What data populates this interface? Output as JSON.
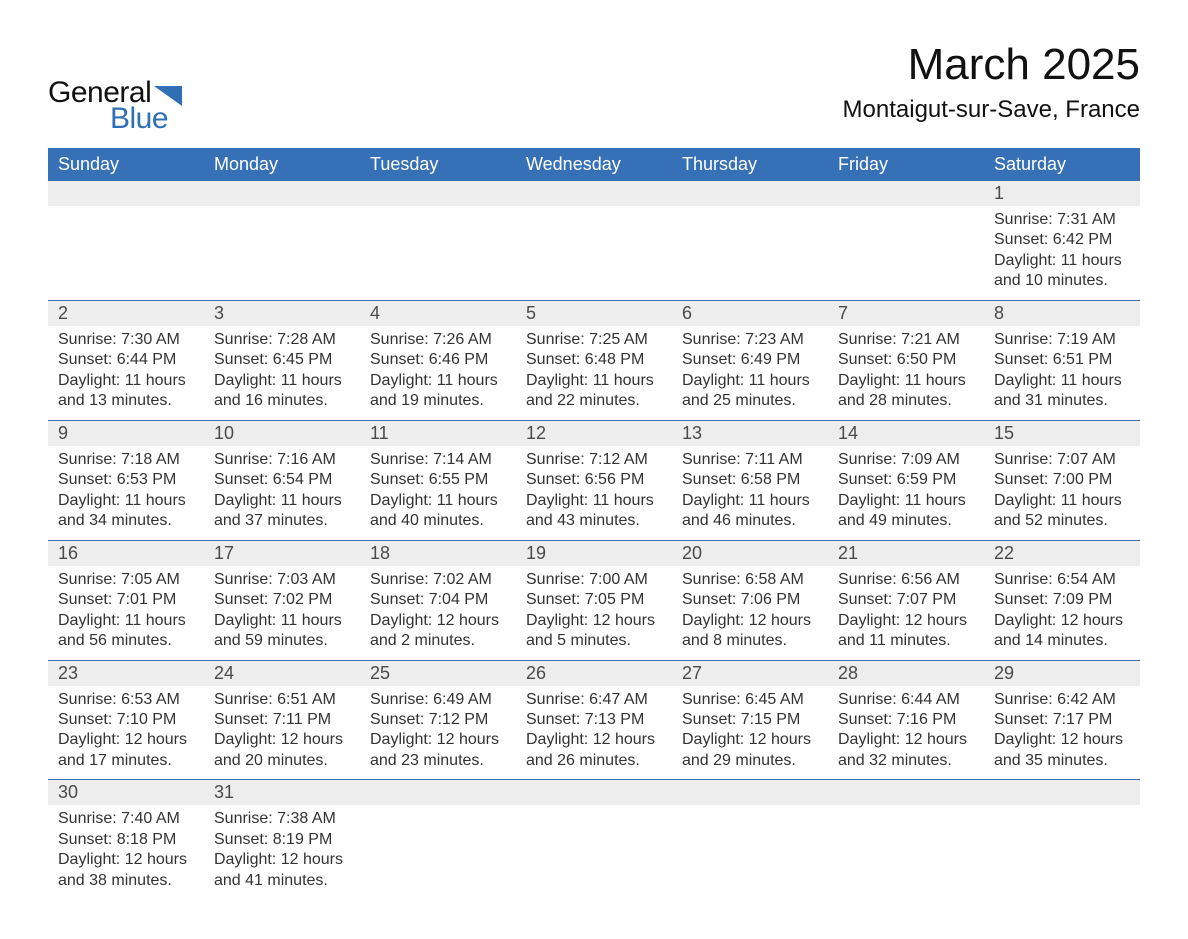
{
  "logo": {
    "text1": "General",
    "text2": "Blue",
    "tri_color": "#2e6fb5",
    "text1_color": "#111111"
  },
  "title": {
    "month": "March 2025",
    "location": "Montaigut-sur-Save, France"
  },
  "colors": {
    "header_bg": "#3670b6",
    "header_fg": "#ffffff",
    "daynum_bg": "#ededed",
    "cell_border": "#3670b6",
    "body_text": "#333333"
  },
  "typography": {
    "title_fontsize": 44,
    "location_fontsize": 24,
    "header_fontsize": 18,
    "daynum_fontsize": 18,
    "body_fontsize": 16
  },
  "calendar": {
    "columns": [
      "Sunday",
      "Monday",
      "Tuesday",
      "Wednesday",
      "Thursday",
      "Friday",
      "Saturday"
    ],
    "weeks": [
      [
        null,
        null,
        null,
        null,
        null,
        null,
        {
          "n": "1",
          "sunrise": "7:31 AM",
          "sunset": "6:42 PM",
          "day_h": 11,
          "day_m": 10
        }
      ],
      [
        {
          "n": "2",
          "sunrise": "7:30 AM",
          "sunset": "6:44 PM",
          "day_h": 11,
          "day_m": 13
        },
        {
          "n": "3",
          "sunrise": "7:28 AM",
          "sunset": "6:45 PM",
          "day_h": 11,
          "day_m": 16
        },
        {
          "n": "4",
          "sunrise": "7:26 AM",
          "sunset": "6:46 PM",
          "day_h": 11,
          "day_m": 19
        },
        {
          "n": "5",
          "sunrise": "7:25 AM",
          "sunset": "6:48 PM",
          "day_h": 11,
          "day_m": 22
        },
        {
          "n": "6",
          "sunrise": "7:23 AM",
          "sunset": "6:49 PM",
          "day_h": 11,
          "day_m": 25
        },
        {
          "n": "7",
          "sunrise": "7:21 AM",
          "sunset": "6:50 PM",
          "day_h": 11,
          "day_m": 28
        },
        {
          "n": "8",
          "sunrise": "7:19 AM",
          "sunset": "6:51 PM",
          "day_h": 11,
          "day_m": 31
        }
      ],
      [
        {
          "n": "9",
          "sunrise": "7:18 AM",
          "sunset": "6:53 PM",
          "day_h": 11,
          "day_m": 34
        },
        {
          "n": "10",
          "sunrise": "7:16 AM",
          "sunset": "6:54 PM",
          "day_h": 11,
          "day_m": 37
        },
        {
          "n": "11",
          "sunrise": "7:14 AM",
          "sunset": "6:55 PM",
          "day_h": 11,
          "day_m": 40
        },
        {
          "n": "12",
          "sunrise": "7:12 AM",
          "sunset": "6:56 PM",
          "day_h": 11,
          "day_m": 43
        },
        {
          "n": "13",
          "sunrise": "7:11 AM",
          "sunset": "6:58 PM",
          "day_h": 11,
          "day_m": 46
        },
        {
          "n": "14",
          "sunrise": "7:09 AM",
          "sunset": "6:59 PM",
          "day_h": 11,
          "day_m": 49
        },
        {
          "n": "15",
          "sunrise": "7:07 AM",
          "sunset": "7:00 PM",
          "day_h": 11,
          "day_m": 52
        }
      ],
      [
        {
          "n": "16",
          "sunrise": "7:05 AM",
          "sunset": "7:01 PM",
          "day_h": 11,
          "day_m": 56
        },
        {
          "n": "17",
          "sunrise": "7:03 AM",
          "sunset": "7:02 PM",
          "day_h": 11,
          "day_m": 59
        },
        {
          "n": "18",
          "sunrise": "7:02 AM",
          "sunset": "7:04 PM",
          "day_h": 12,
          "day_m": 2
        },
        {
          "n": "19",
          "sunrise": "7:00 AM",
          "sunset": "7:05 PM",
          "day_h": 12,
          "day_m": 5
        },
        {
          "n": "20",
          "sunrise": "6:58 AM",
          "sunset": "7:06 PM",
          "day_h": 12,
          "day_m": 8
        },
        {
          "n": "21",
          "sunrise": "6:56 AM",
          "sunset": "7:07 PM",
          "day_h": 12,
          "day_m": 11
        },
        {
          "n": "22",
          "sunrise": "6:54 AM",
          "sunset": "7:09 PM",
          "day_h": 12,
          "day_m": 14
        }
      ],
      [
        {
          "n": "23",
          "sunrise": "6:53 AM",
          "sunset": "7:10 PM",
          "day_h": 12,
          "day_m": 17
        },
        {
          "n": "24",
          "sunrise": "6:51 AM",
          "sunset": "7:11 PM",
          "day_h": 12,
          "day_m": 20
        },
        {
          "n": "25",
          "sunrise": "6:49 AM",
          "sunset": "7:12 PM",
          "day_h": 12,
          "day_m": 23
        },
        {
          "n": "26",
          "sunrise": "6:47 AM",
          "sunset": "7:13 PM",
          "day_h": 12,
          "day_m": 26
        },
        {
          "n": "27",
          "sunrise": "6:45 AM",
          "sunset": "7:15 PM",
          "day_h": 12,
          "day_m": 29
        },
        {
          "n": "28",
          "sunrise": "6:44 AM",
          "sunset": "7:16 PM",
          "day_h": 12,
          "day_m": 32
        },
        {
          "n": "29",
          "sunrise": "6:42 AM",
          "sunset": "7:17 PM",
          "day_h": 12,
          "day_m": 35
        }
      ],
      [
        {
          "n": "30",
          "sunrise": "7:40 AM",
          "sunset": "8:18 PM",
          "day_h": 12,
          "day_m": 38
        },
        {
          "n": "31",
          "sunrise": "7:38 AM",
          "sunset": "8:19 PM",
          "day_h": 12,
          "day_m": 41
        },
        null,
        null,
        null,
        null,
        null
      ]
    ],
    "labels": {
      "sunrise": "Sunrise:",
      "sunset": "Sunset:",
      "daylight": "Daylight:",
      "hours": "hours",
      "and": "and",
      "minutes": "minutes."
    }
  }
}
